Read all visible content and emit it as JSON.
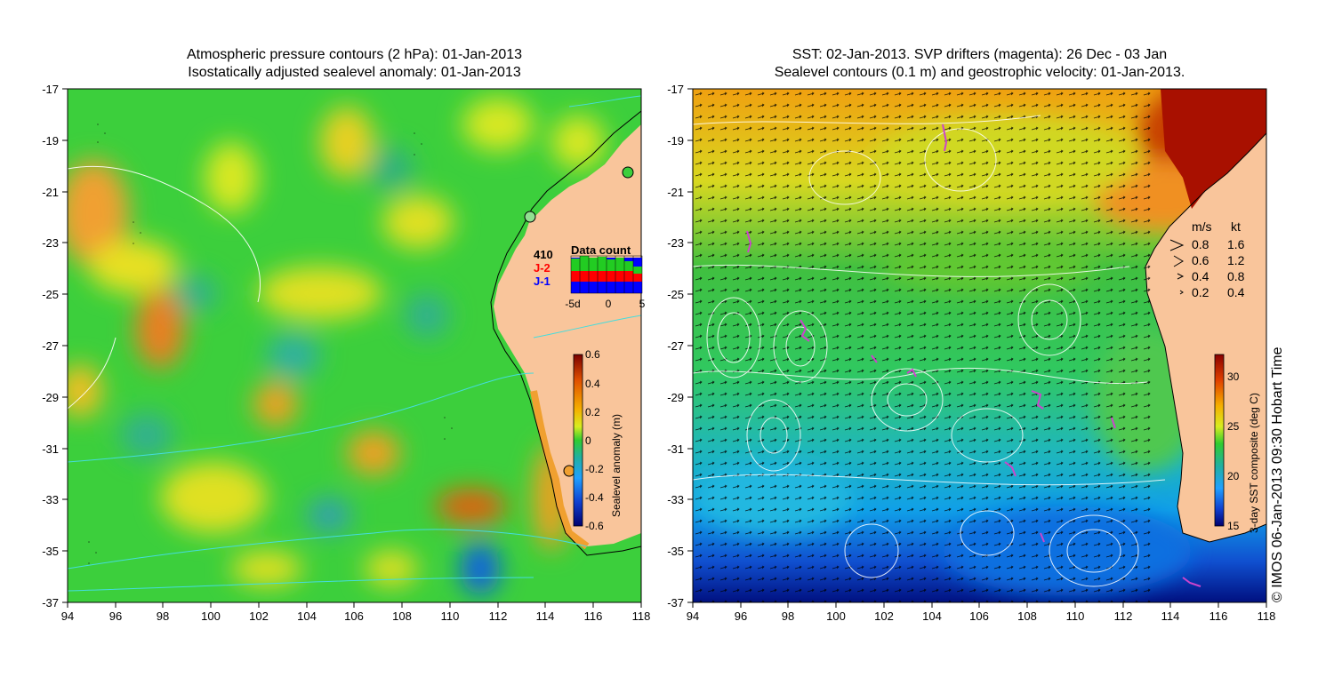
{
  "left_panel": {
    "title_line1": "Atmospheric pressure contours (2 hPa): 01-Jan-2013",
    "title_line2": "Isostatically adjusted sealevel anomaly: 01-Jan-2013",
    "lat_ticks": [
      "-17",
      "-19",
      "-21",
      "-23",
      "-25",
      "-27",
      "-29",
      "-31",
      "-33",
      "-35",
      "-37"
    ],
    "lon_ticks": [
      "94",
      "96",
      "98",
      "100",
      "102",
      "104",
      "106",
      "108",
      "110",
      "112",
      "114",
      "116",
      "118"
    ],
    "colorbar": {
      "label": "Sealevel anomaly (m)",
      "ticks": [
        "0.6",
        "0.4",
        "0.2",
        "0",
        "-0.2",
        "-0.4",
        "-0.6"
      ]
    },
    "data_count": {
      "title": "Data count",
      "count": "410",
      "sat1": "J-2",
      "sat2": "J-1",
      "xticks": [
        "-5d",
        "0",
        "5"
      ],
      "colors": {
        "count": "#22cc22",
        "sat1": "#ff0000",
        "sat2": "#0000ff"
      }
    }
  },
  "right_panel": {
    "title_line1": "SST: 02-Jan-2013. SVP drifters (magenta): 26 Dec - 03 Jan",
    "title_line2": "Sealevel contours (0.1 m) and geostrophic velocity: 01-Jan-2013.",
    "lat_ticks": [
      "-17",
      "-19",
      "-21",
      "-23",
      "-25",
      "-27",
      "-29",
      "-31",
      "-33",
      "-35",
      "-37"
    ],
    "lon_ticks": [
      "94",
      "96",
      "98",
      "100",
      "102",
      "104",
      "106",
      "108",
      "110",
      "112",
      "114",
      "116",
      "118"
    ],
    "colorbar": {
      "label": "3-day SST composite (deg C)",
      "ticks": [
        "30",
        "25",
        "20",
        "15"
      ]
    },
    "velocity_legend": {
      "header_ms": "m/s",
      "header_kt": "kt",
      "rows": [
        {
          "ms": "0.8",
          "kt": "1.6"
        },
        {
          "ms": "0.6",
          "kt": "1.2"
        },
        {
          "ms": "0.4",
          "kt": "0.8"
        },
        {
          "ms": "0.2",
          "kt": "0.4"
        }
      ]
    }
  },
  "credit": "© IMOS 06-Jan-2013 09:30 Hobart Time",
  "colors": {
    "land": "#f9c59b",
    "drifter": "#cc44cc",
    "contour_pressure": "#44dddd"
  }
}
